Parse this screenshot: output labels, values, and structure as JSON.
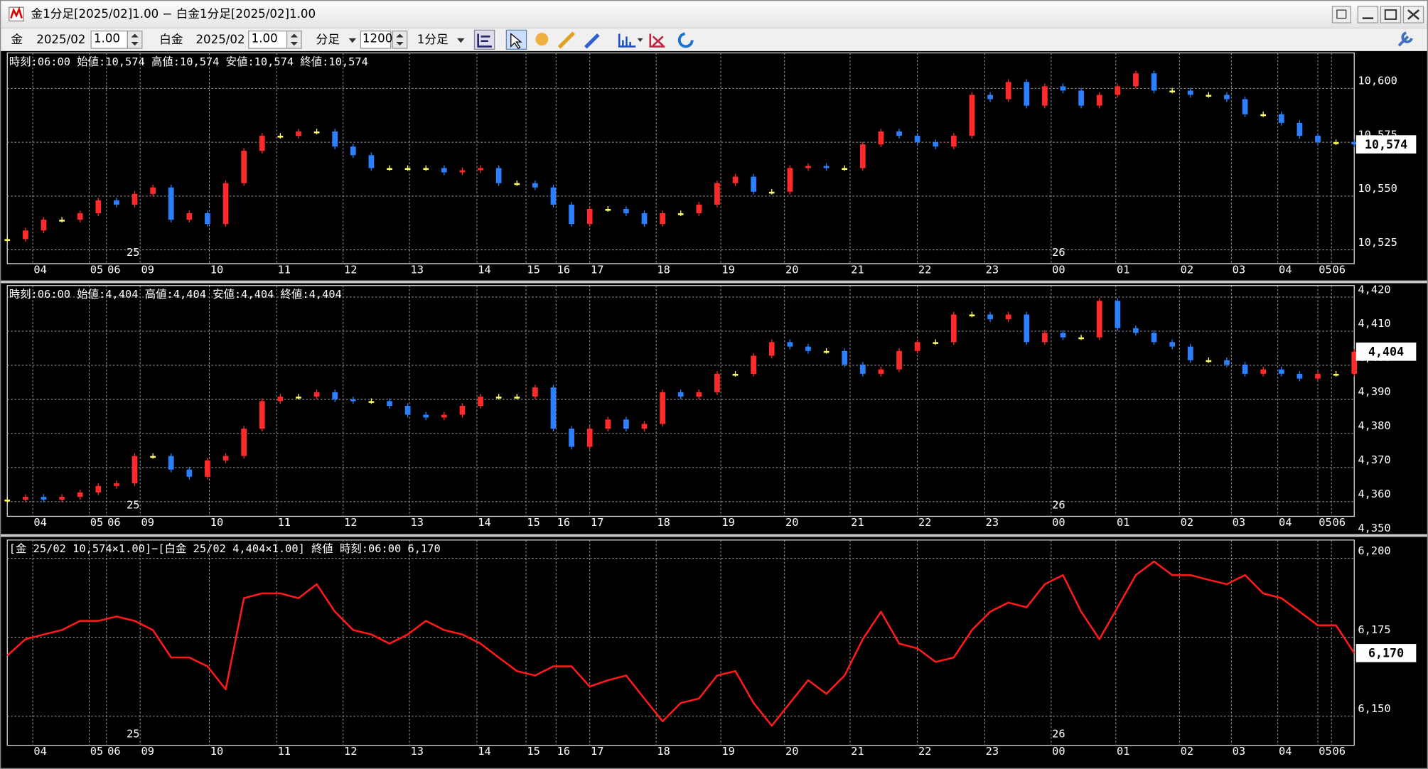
{
  "window": {
    "title": "金1分足[2025/02]1.00 − 白金1分足[2025/02]1.00"
  },
  "toolbar": {
    "symbol1": "金",
    "month1": "2025/02",
    "mult1": "1.00",
    "symbol2": "白金",
    "month2": "2025/02",
    "mult2": "1.00",
    "bar_unit": "分足",
    "count": "1200",
    "period": "1分足"
  },
  "chart_data": [
    {
      "type": "candlestick",
      "info": "時刻:06:00 始値:10,574 高値:10,574 安値:10,574 終値:10,574",
      "colors": {
        "up": "#ff2a2a",
        "down": "#2a80ff",
        "flat": "#ffff66"
      },
      "xlim": [
        0,
        74
      ],
      "xticks": [
        {
          "value": 1.4,
          "label": "04"
        },
        {
          "value": 4.5,
          "label": "05"
        },
        {
          "value": 5.45,
          "label": "06"
        },
        {
          "value": 7.3,
          "label": "09"
        },
        {
          "value": 11.1,
          "label": "10"
        },
        {
          "value": 14.8,
          "label": "11"
        },
        {
          "value": 18.45,
          "label": "12"
        },
        {
          "value": 22.1,
          "label": "13"
        },
        {
          "value": 25.8,
          "label": "14"
        },
        {
          "value": 28.5,
          "label": "15"
        },
        {
          "value": 30.15,
          "label": "16"
        },
        {
          "value": 32,
          "label": "17"
        },
        {
          "value": 35.65,
          "label": "18"
        },
        {
          "value": 39.2,
          "label": "19"
        },
        {
          "value": 42.7,
          "label": "20"
        },
        {
          "value": 46.3,
          "label": "21"
        },
        {
          "value": 50,
          "label": "22"
        },
        {
          "value": 53.7,
          "label": "23"
        },
        {
          "value": 57.35,
          "label": "00"
        },
        {
          "value": 60.9,
          "label": "01"
        },
        {
          "value": 64.4,
          "label": "02"
        },
        {
          "value": 67.25,
          "label": "03"
        },
        {
          "value": 69.8,
          "label": "04"
        },
        {
          "value": 72,
          "label": "05"
        },
        {
          "value": 72.75,
          "label": "06"
        }
      ],
      "annotations": [
        {
          "text": "25",
          "x": 6.5
        },
        {
          "text": "26",
          "x": 57.35
        }
      ],
      "ylim": [
        10518.6,
        10616.5
      ],
      "yticks": [
        {
          "value": 10525,
          "label": "10,525"
        },
        {
          "value": 10550,
          "label": "10,550"
        },
        {
          "value": 10575,
          "label": "10,575"
        },
        {
          "value": 10600,
          "label": "10,600"
        }
      ],
      "current": {
        "value": 10574,
        "label": "10,574"
      },
      "values": [
        10530,
        10534,
        10539,
        10539,
        10542,
        10548,
        10546,
        10551,
        10554,
        10539,
        10542,
        10537,
        10556,
        10571,
        10578,
        10578,
        10580,
        10580,
        10573,
        10569,
        10563,
        10563,
        10563,
        10563,
        10561,
        10562,
        10563,
        10556,
        10556,
        10554,
        10546,
        10537,
        10544,
        10544,
        10542,
        10537,
        10542,
        10542,
        10546,
        10556,
        10559,
        10552,
        10552,
        10563,
        10564,
        10563,
        10563,
        10574,
        10580,
        10578,
        10575,
        10573,
        10578,
        10597,
        10595,
        10603,
        10592,
        10601,
        10599,
        10592,
        10597,
        10601,
        10607,
        10599,
        10599,
        10597,
        10597,
        10595,
        10588,
        10588,
        10584,
        10578,
        10575,
        10575,
        10574
      ]
    },
    {
      "type": "candlestick",
      "info": "時刻:06:00 始値:4,404 高値:4,404 安値:4,404 終値:4,404",
      "colors": {
        "up": "#ff2a2a",
        "down": "#2a80ff",
        "flat": "#ffff66"
      },
      "xlim": [
        0,
        74
      ],
      "xticks": [
        {
          "value": 1.4,
          "label": "04"
        },
        {
          "value": 4.5,
          "label": "05"
        },
        {
          "value": 5.45,
          "label": "06"
        },
        {
          "value": 7.3,
          "label": "09"
        },
        {
          "value": 11.1,
          "label": "10"
        },
        {
          "value": 14.8,
          "label": "11"
        },
        {
          "value": 18.45,
          "label": "12"
        },
        {
          "value": 22.1,
          "label": "13"
        },
        {
          "value": 25.8,
          "label": "14"
        },
        {
          "value": 28.5,
          "label": "15"
        },
        {
          "value": 30.15,
          "label": "16"
        },
        {
          "value": 32,
          "label": "17"
        },
        {
          "value": 35.65,
          "label": "18"
        },
        {
          "value": 39.2,
          "label": "19"
        },
        {
          "value": 42.7,
          "label": "20"
        },
        {
          "value": 46.3,
          "label": "21"
        },
        {
          "value": 50,
          "label": "22"
        },
        {
          "value": 53.7,
          "label": "23"
        },
        {
          "value": 57.35,
          "label": "00"
        },
        {
          "value": 60.9,
          "label": "01"
        },
        {
          "value": 64.4,
          "label": "02"
        },
        {
          "value": 67.25,
          "label": "03"
        },
        {
          "value": 69.8,
          "label": "04"
        },
        {
          "value": 72,
          "label": "05"
        },
        {
          "value": 72.75,
          "label": "06"
        }
      ],
      "annotations": [
        {
          "text": "25",
          "x": 6.5
        },
        {
          "text": "26",
          "x": 57.35
        }
      ],
      "ylim": [
        4355.7,
        4423.4
      ],
      "yticks": [
        {
          "value": 4350,
          "label": "4,350"
        },
        {
          "value": 4360,
          "label": "4,360"
        },
        {
          "value": 4370,
          "label": "4,370"
        },
        {
          "value": 4380,
          "label": "4,380"
        },
        {
          "value": 4390,
          "label": "4,390"
        },
        {
          "value": 4400,
          "label": "4,400"
        },
        {
          "value": 4410,
          "label": "4,410"
        },
        {
          "value": 4420,
          "label": "4,420"
        }
      ],
      "current": {
        "value": 4404,
        "label": "4,404"
      },
      "values": [
        4360.6,
        4361.4,
        4360.6,
        4361.4,
        4362.7,
        4364.6,
        4365.4,
        4373.4,
        4373.4,
        4369.4,
        4367.3,
        4372.1,
        4373.4,
        4381.4,
        4389.5,
        4390.8,
        4390.8,
        4392.1,
        4390,
        4389.5,
        4389.5,
        4388.1,
        4385.5,
        4384.7,
        4385.5,
        4388.1,
        4390.8,
        4390.8,
        4390.8,
        4393.5,
        4381.4,
        4376.1,
        4381.4,
        4384.1,
        4381.4,
        4382.8,
        4392.1,
        4390.8,
        4392.1,
        4397.5,
        4397.5,
        4402.8,
        4406.8,
        4405.5,
        4404.2,
        4404.2,
        4400.2,
        4397.5,
        4398.8,
        4404.2,
        4406.8,
        4406.8,
        4414.9,
        4414.9,
        4413.5,
        4414.9,
        4406.8,
        4409.5,
        4408.2,
        4408.2,
        4418.9,
        4410.9,
        4409.5,
        4406.8,
        4405.5,
        4401.5,
        4401.5,
        4400.2,
        4397.5,
        4398.8,
        4397.5,
        4396.1,
        4397.5,
        4397.5,
        4404
      ]
    },
    {
      "type": "line",
      "info": "[金 25/02 10,574×1.00]−[白金 25/02 4,404×1.00] 終値 時刻:06:00 6,170",
      "color": "#ff1a1a",
      "xlim": [
        0,
        74
      ],
      "xticks": [
        {
          "value": 1.4,
          "label": "04"
        },
        {
          "value": 4.5,
          "label": "05"
        },
        {
          "value": 5.45,
          "label": "06"
        },
        {
          "value": 7.3,
          "label": "09"
        },
        {
          "value": 11.1,
          "label": "10"
        },
        {
          "value": 14.8,
          "label": "11"
        },
        {
          "value": 18.45,
          "label": "12"
        },
        {
          "value": 22.1,
          "label": "13"
        },
        {
          "value": 25.8,
          "label": "14"
        },
        {
          "value": 28.5,
          "label": "15"
        },
        {
          "value": 30.15,
          "label": "16"
        },
        {
          "value": 32,
          "label": "17"
        },
        {
          "value": 35.65,
          "label": "18"
        },
        {
          "value": 39.2,
          "label": "19"
        },
        {
          "value": 42.7,
          "label": "20"
        },
        {
          "value": 46.3,
          "label": "21"
        },
        {
          "value": 50,
          "label": "22"
        },
        {
          "value": 53.7,
          "label": "23"
        },
        {
          "value": 57.35,
          "label": "00"
        },
        {
          "value": 60.9,
          "label": "01"
        },
        {
          "value": 64.4,
          "label": "02"
        },
        {
          "value": 67.25,
          "label": "03"
        },
        {
          "value": 69.8,
          "label": "04"
        },
        {
          "value": 72,
          "label": "05"
        },
        {
          "value": 72.75,
          "label": "06"
        }
      ],
      "annotations": [
        {
          "text": "25",
          "x": 6.5
        },
        {
          "text": "26",
          "x": 57.35
        }
      ],
      "ylim": [
        6140.8,
        6205.8
      ],
      "yticks": [
        {
          "value": 6150,
          "label": "6,150"
        },
        {
          "value": 6175,
          "label": "6,175"
        },
        {
          "value": 6200,
          "label": "6,200"
        }
      ],
      "current": {
        "value": 6170,
        "label": "6,170"
      },
      "values": [
        6169.2,
        6174.4,
        6175.9,
        6177.3,
        6180.2,
        6180.2,
        6181.6,
        6180.2,
        6177.3,
        6168.6,
        6168.6,
        6165.8,
        6158.5,
        6187.4,
        6188.9,
        6188.9,
        6187.4,
        6191.8,
        6183.1,
        6177.3,
        6175.9,
        6173,
        6175.9,
        6180.2,
        6177.3,
        6175.9,
        6173,
        6168.6,
        6164.3,
        6162.9,
        6165.8,
        6165.8,
        6159.4,
        6161.4,
        6162.9,
        6155.6,
        6148.4,
        6154.2,
        6155.6,
        6162.9,
        6164.3,
        6154.2,
        6147,
        6154.2,
        6161.4,
        6157.1,
        6162.9,
        6174.4,
        6183.1,
        6173,
        6171.5,
        6167.2,
        6168.6,
        6177.3,
        6183.1,
        6186,
        6184.5,
        6191.8,
        6194.7,
        6183.1,
        6174.4,
        6184.5,
        6194.7,
        6199,
        6194.7,
        6194.7,
        6193.2,
        6191.8,
        6194.7,
        6188.9,
        6187.4,
        6183.1,
        6178.8,
        6178.8,
        6170
      ]
    }
  ]
}
